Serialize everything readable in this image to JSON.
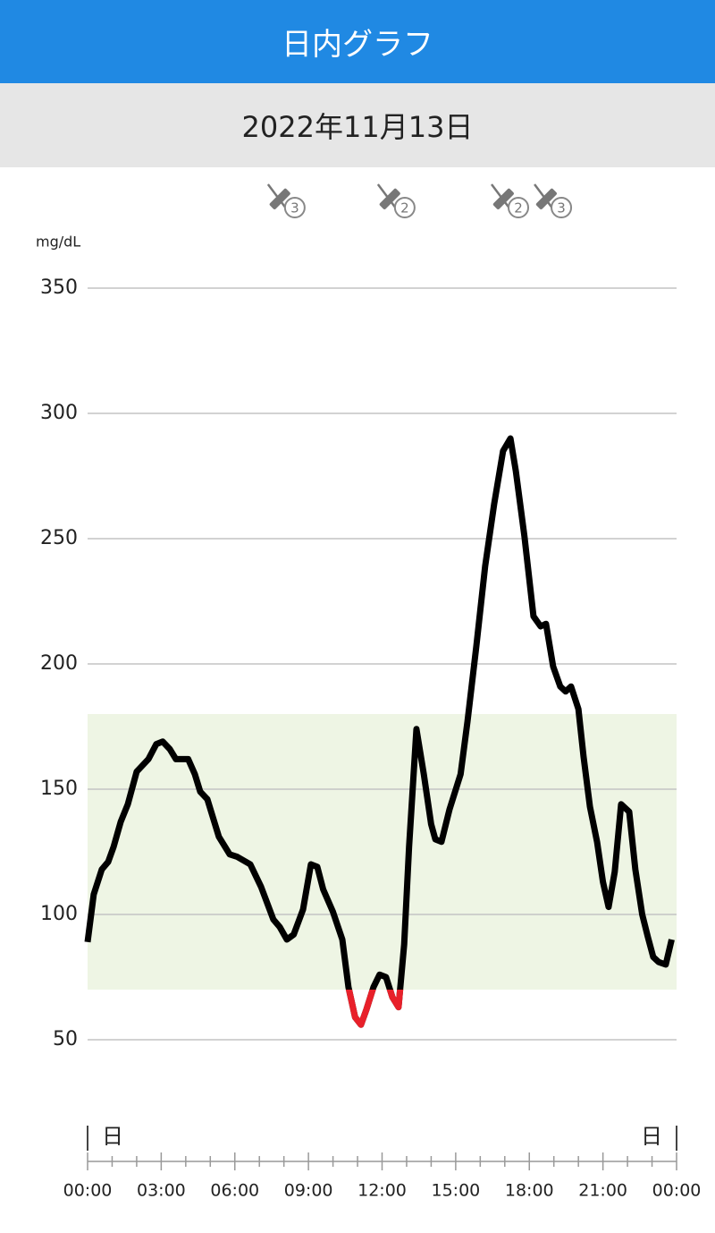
{
  "header": {
    "title": "日内グラフ"
  },
  "date": "2022年11月13日",
  "chart_data": {
    "type": "line",
    "y_label": "mg/dL",
    "series": [
      {
        "color": "#000000",
        "low_color": "#e8202a",
        "x": [
          0,
          0.25,
          0.58,
          0.84,
          1.06,
          1.35,
          1.64,
          2.0,
          2.48,
          2.8,
          3.06,
          3.35,
          3.6,
          4.1,
          4.37,
          4.59,
          4.88,
          5.35,
          5.79,
          6.1,
          6.63,
          7.07,
          7.57,
          7.83,
          8.12,
          8.4,
          8.78,
          9.1,
          9.36,
          9.6,
          10.0,
          10.38,
          10.63,
          10.9,
          11.14,
          11.36,
          11.65,
          11.9,
          12.16,
          12.42,
          12.67,
          12.9,
          13.1,
          13.4,
          13.7,
          14.0,
          14.17,
          14.42,
          14.75,
          15.2,
          15.48,
          15.84,
          16.2,
          16.57,
          16.93,
          17.23,
          17.45,
          17.8,
          18.17,
          18.46,
          18.68,
          18.97,
          19.26,
          19.48,
          19.7,
          20.0,
          20.21,
          20.47,
          20.76,
          21.0,
          21.23,
          21.48,
          21.74,
          22.07,
          22.32,
          22.6,
          22.83,
          23.05,
          23.27,
          23.56,
          23.8
        ],
        "values": [
          89,
          108,
          118,
          121,
          127,
          137,
          144,
          157,
          162,
          168,
          169,
          166,
          162,
          162,
          156,
          149,
          146,
          131,
          124,
          123,
          120,
          111,
          98,
          95,
          90,
          92,
          102,
          120,
          119,
          110,
          101,
          90,
          71,
          59,
          56,
          62,
          71,
          76,
          75,
          67,
          63,
          88,
          127,
          174,
          156,
          136,
          130,
          129,
          142,
          156,
          177,
          207,
          239,
          264,
          285,
          290,
          277,
          251,
          219,
          215,
          216,
          199,
          191,
          189,
          191,
          182,
          163,
          143,
          129,
          113,
          103,
          117,
          144,
          141,
          118,
          100,
          91,
          83,
          81,
          80,
          90
        ]
      }
    ],
    "target_range": [
      70,
      180
    ],
    "target_color": "#eef5e4",
    "ylim": [
      50,
      350
    ],
    "yticks": [
      50,
      100,
      150,
      200,
      250,
      300,
      350
    ],
    "grid": true,
    "xlim": [
      0,
      24
    ],
    "xticks": [
      {
        "value": 0,
        "label": "00:00"
      },
      {
        "value": 3,
        "label": "03:00"
      },
      {
        "value": 6,
        "label": "06:00"
      },
      {
        "value": 9,
        "label": "09:00"
      },
      {
        "value": 12,
        "label": "12:00"
      },
      {
        "value": 15,
        "label": "15:00"
      },
      {
        "value": 18,
        "label": "18:00"
      },
      {
        "value": 21,
        "label": "21:00"
      },
      {
        "value": 24,
        "label": "00:00"
      }
    ],
    "xminorticks": [
      1,
      2,
      4,
      5,
      7,
      8,
      10,
      11,
      13,
      14,
      16,
      17,
      19,
      20,
      22,
      23
    ],
    "day_markers": [
      {
        "x": 0,
        "label": "日"
      },
      {
        "x": 24,
        "label": "日"
      }
    ],
    "events": [
      {
        "x": 8.08,
        "label": "3"
      },
      {
        "x": 12.56,
        "label": "2"
      },
      {
        "x": 17.19,
        "label": "2"
      },
      {
        "x": 18.94,
        "label": "3"
      }
    ]
  }
}
